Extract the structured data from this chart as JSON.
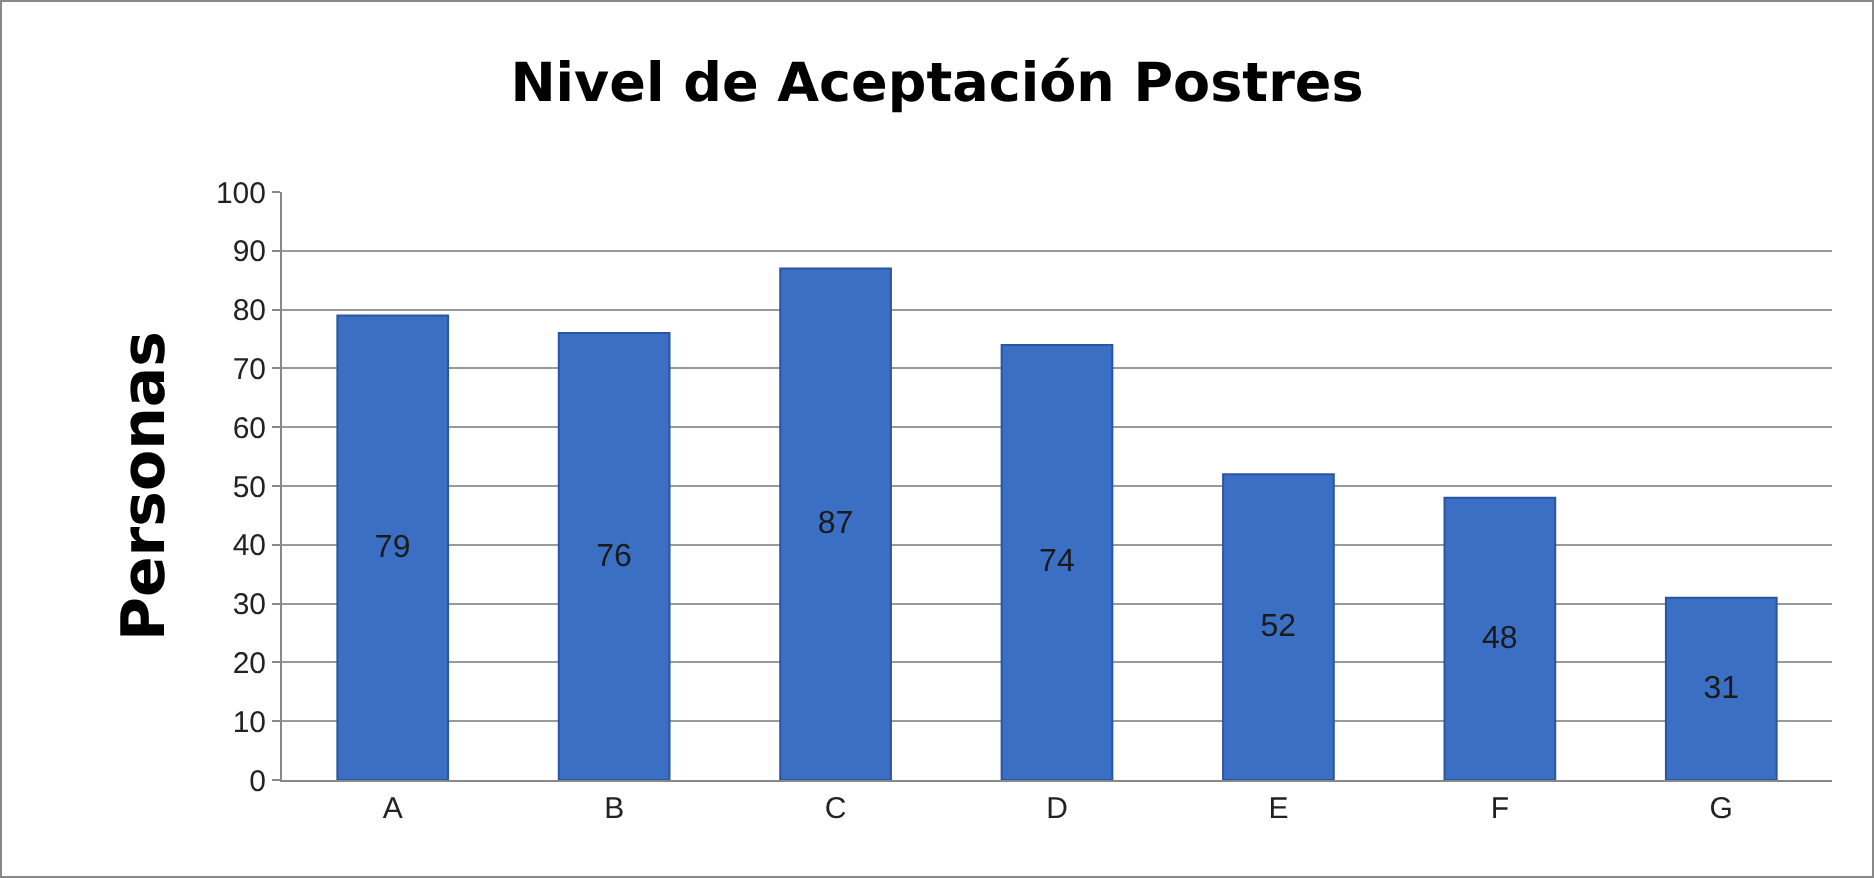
{
  "chart_data": {
    "type": "bar",
    "title": "Nivel de Aceptación Postres",
    "ylabel": "Personas",
    "categories": [
      "A",
      "B",
      "C",
      "D",
      "E",
      "F",
      "G"
    ],
    "values": [
      79,
      76,
      87,
      74,
      52,
      48,
      31
    ],
    "color": "#3a6fc4",
    "ylim": [
      0,
      100
    ],
    "yticks": [
      0,
      10,
      20,
      30,
      40,
      50,
      60,
      70,
      80,
      90,
      100
    ],
    "grid": "y",
    "legend": false,
    "data_labels": true
  }
}
